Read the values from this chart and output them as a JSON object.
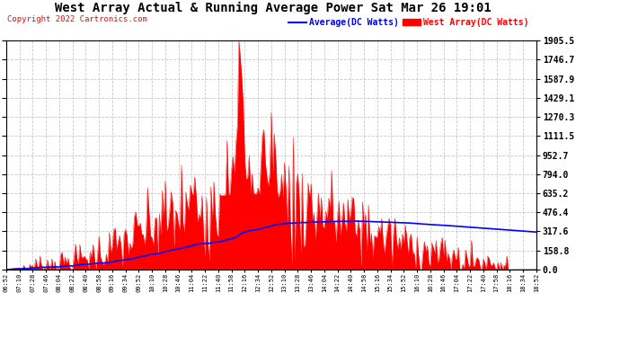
{
  "title": "West Array Actual & Running Average Power Sat Mar 26 19:01",
  "copyright": "Copyright 2022 Cartronics.com",
  "legend_avg": "Average(DC Watts)",
  "legend_west": "West Array(DC Watts)",
  "yticks": [
    0.0,
    158.8,
    317.6,
    476.4,
    635.2,
    794.0,
    952.7,
    1111.5,
    1270.3,
    1429.1,
    1587.9,
    1746.7,
    1905.5
  ],
  "ymax": 1905.5,
  "ymin": 0.0,
  "background_color": "#ffffff",
  "plot_bg_color": "#ffffff",
  "grid_color": "#bbbbbb",
  "fill_color": "#ff0000",
  "avg_line_color": "#0000ff",
  "west_line_color": "#ff0000",
  "title_color": "#000000",
  "copyright_color": "#ff0000",
  "avg_legend_color": "#0000ff",
  "west_legend_color": "#ff0000"
}
